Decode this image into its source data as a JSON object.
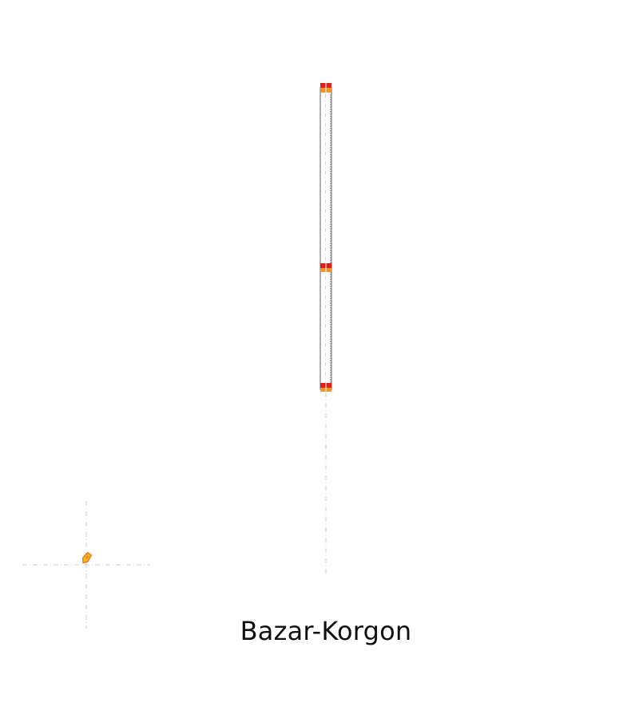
{
  "place": {
    "name": "Bazar-Korgon"
  },
  "icons": {
    "marker": "map-pin-icon",
    "endpoint": "route-endpoint-marker"
  },
  "colors": {
    "background": "#ffffff",
    "route_outline": "#8a8a8a",
    "route_fill": "#ffffff",
    "crosshair": "#c8c8c8",
    "marker_red": "#e0211b",
    "marker_orange": "#f0952e",
    "pin_yellow": "#f2b51c",
    "pin_orange": "#e8731a",
    "label": "#111111"
  }
}
